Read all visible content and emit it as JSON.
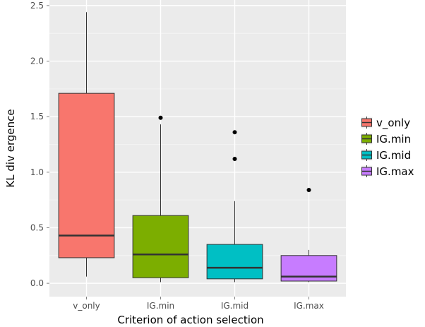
{
  "chart_data": {
    "type": "boxplot",
    "xlabel": "Criterion of action selection",
    "ylabel": "KL  div ergence",
    "ylim": [
      -0.12,
      2.55
    ],
    "yticks": [
      0.0,
      0.5,
      1.0,
      1.5,
      2.0,
      2.5
    ],
    "ytick_labels": [
      "0.0",
      "0.5",
      "1.0",
      "1.5",
      "2.0",
      "2.5"
    ],
    "categories": [
      "v_only",
      "IG.min",
      "IG.mid",
      "IG.max"
    ],
    "grid": true,
    "legend": {
      "position": "right",
      "entries": [
        "v_only",
        "IG.min",
        "IG.mid",
        "IG.max"
      ]
    },
    "series": [
      {
        "name": "v_only",
        "color": "#f8766d",
        "whisker_low": 0.06,
        "q1": 0.23,
        "median": 0.43,
        "q3": 1.71,
        "whisker_high": 2.44,
        "outliers": []
      },
      {
        "name": "IG.min",
        "color": "#7cae00",
        "whisker_low": 0.01,
        "q1": 0.05,
        "median": 0.26,
        "q3": 0.61,
        "whisker_high": 1.43,
        "outliers": [
          1.49
        ]
      },
      {
        "name": "IG.mid",
        "color": "#00bfc4",
        "whisker_low": 0.01,
        "q1": 0.04,
        "median": 0.14,
        "q3": 0.35,
        "whisker_high": 0.74,
        "outliers": [
          1.12,
          1.36
        ]
      },
      {
        "name": "IG.max",
        "color": "#c77cff",
        "whisker_low": 0.01,
        "q1": 0.02,
        "median": 0.06,
        "q3": 0.25,
        "whisker_high": 0.3,
        "outliers": [
          0.84
        ]
      }
    ]
  }
}
